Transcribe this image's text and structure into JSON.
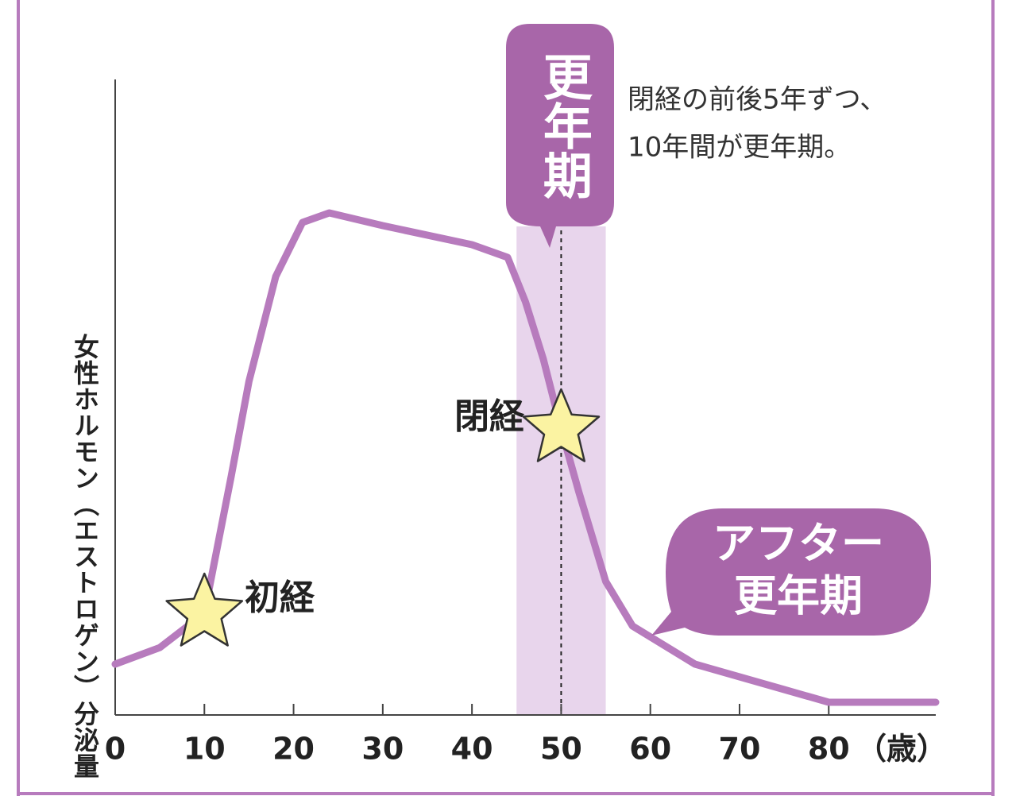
{
  "chart_data": {
    "type": "line",
    "y_label": "女性ホルモン（エストロゲン）分泌量",
    "x_unit": "（歳）",
    "x": [
      0,
      5,
      10,
      13,
      15,
      18,
      21,
      24,
      30,
      40,
      44,
      46,
      48,
      50,
      52,
      55,
      58,
      65,
      75,
      80,
      92
    ],
    "values": [
      8,
      10.6,
      16,
      37.5,
      52.5,
      69,
      77.5,
      79,
      77,
      74,
      72,
      65,
      56,
      45,
      35,
      21,
      14,
      8,
      4,
      2,
      2
    ],
    "color": "#b77bbd",
    "xlim": [
      0,
      92
    ],
    "ylim": [
      0,
      100
    ],
    "xticks": [
      0,
      10,
      20,
      30,
      40,
      50,
      60,
      70,
      80
    ],
    "band": {
      "range": [
        45,
        55
      ],
      "center": 50,
      "label": "更年期",
      "color": "#e8d5ec"
    },
    "note": [
      "閉経の前後5年ずつ、",
      "10年間が更年期。"
    ],
    "markers": [
      {
        "label": "初経",
        "x": 10,
        "y": 16
      },
      {
        "label": "閉経",
        "x": 50,
        "y": 45
      }
    ],
    "callout": [
      "アフター",
      "更年期"
    ]
  }
}
